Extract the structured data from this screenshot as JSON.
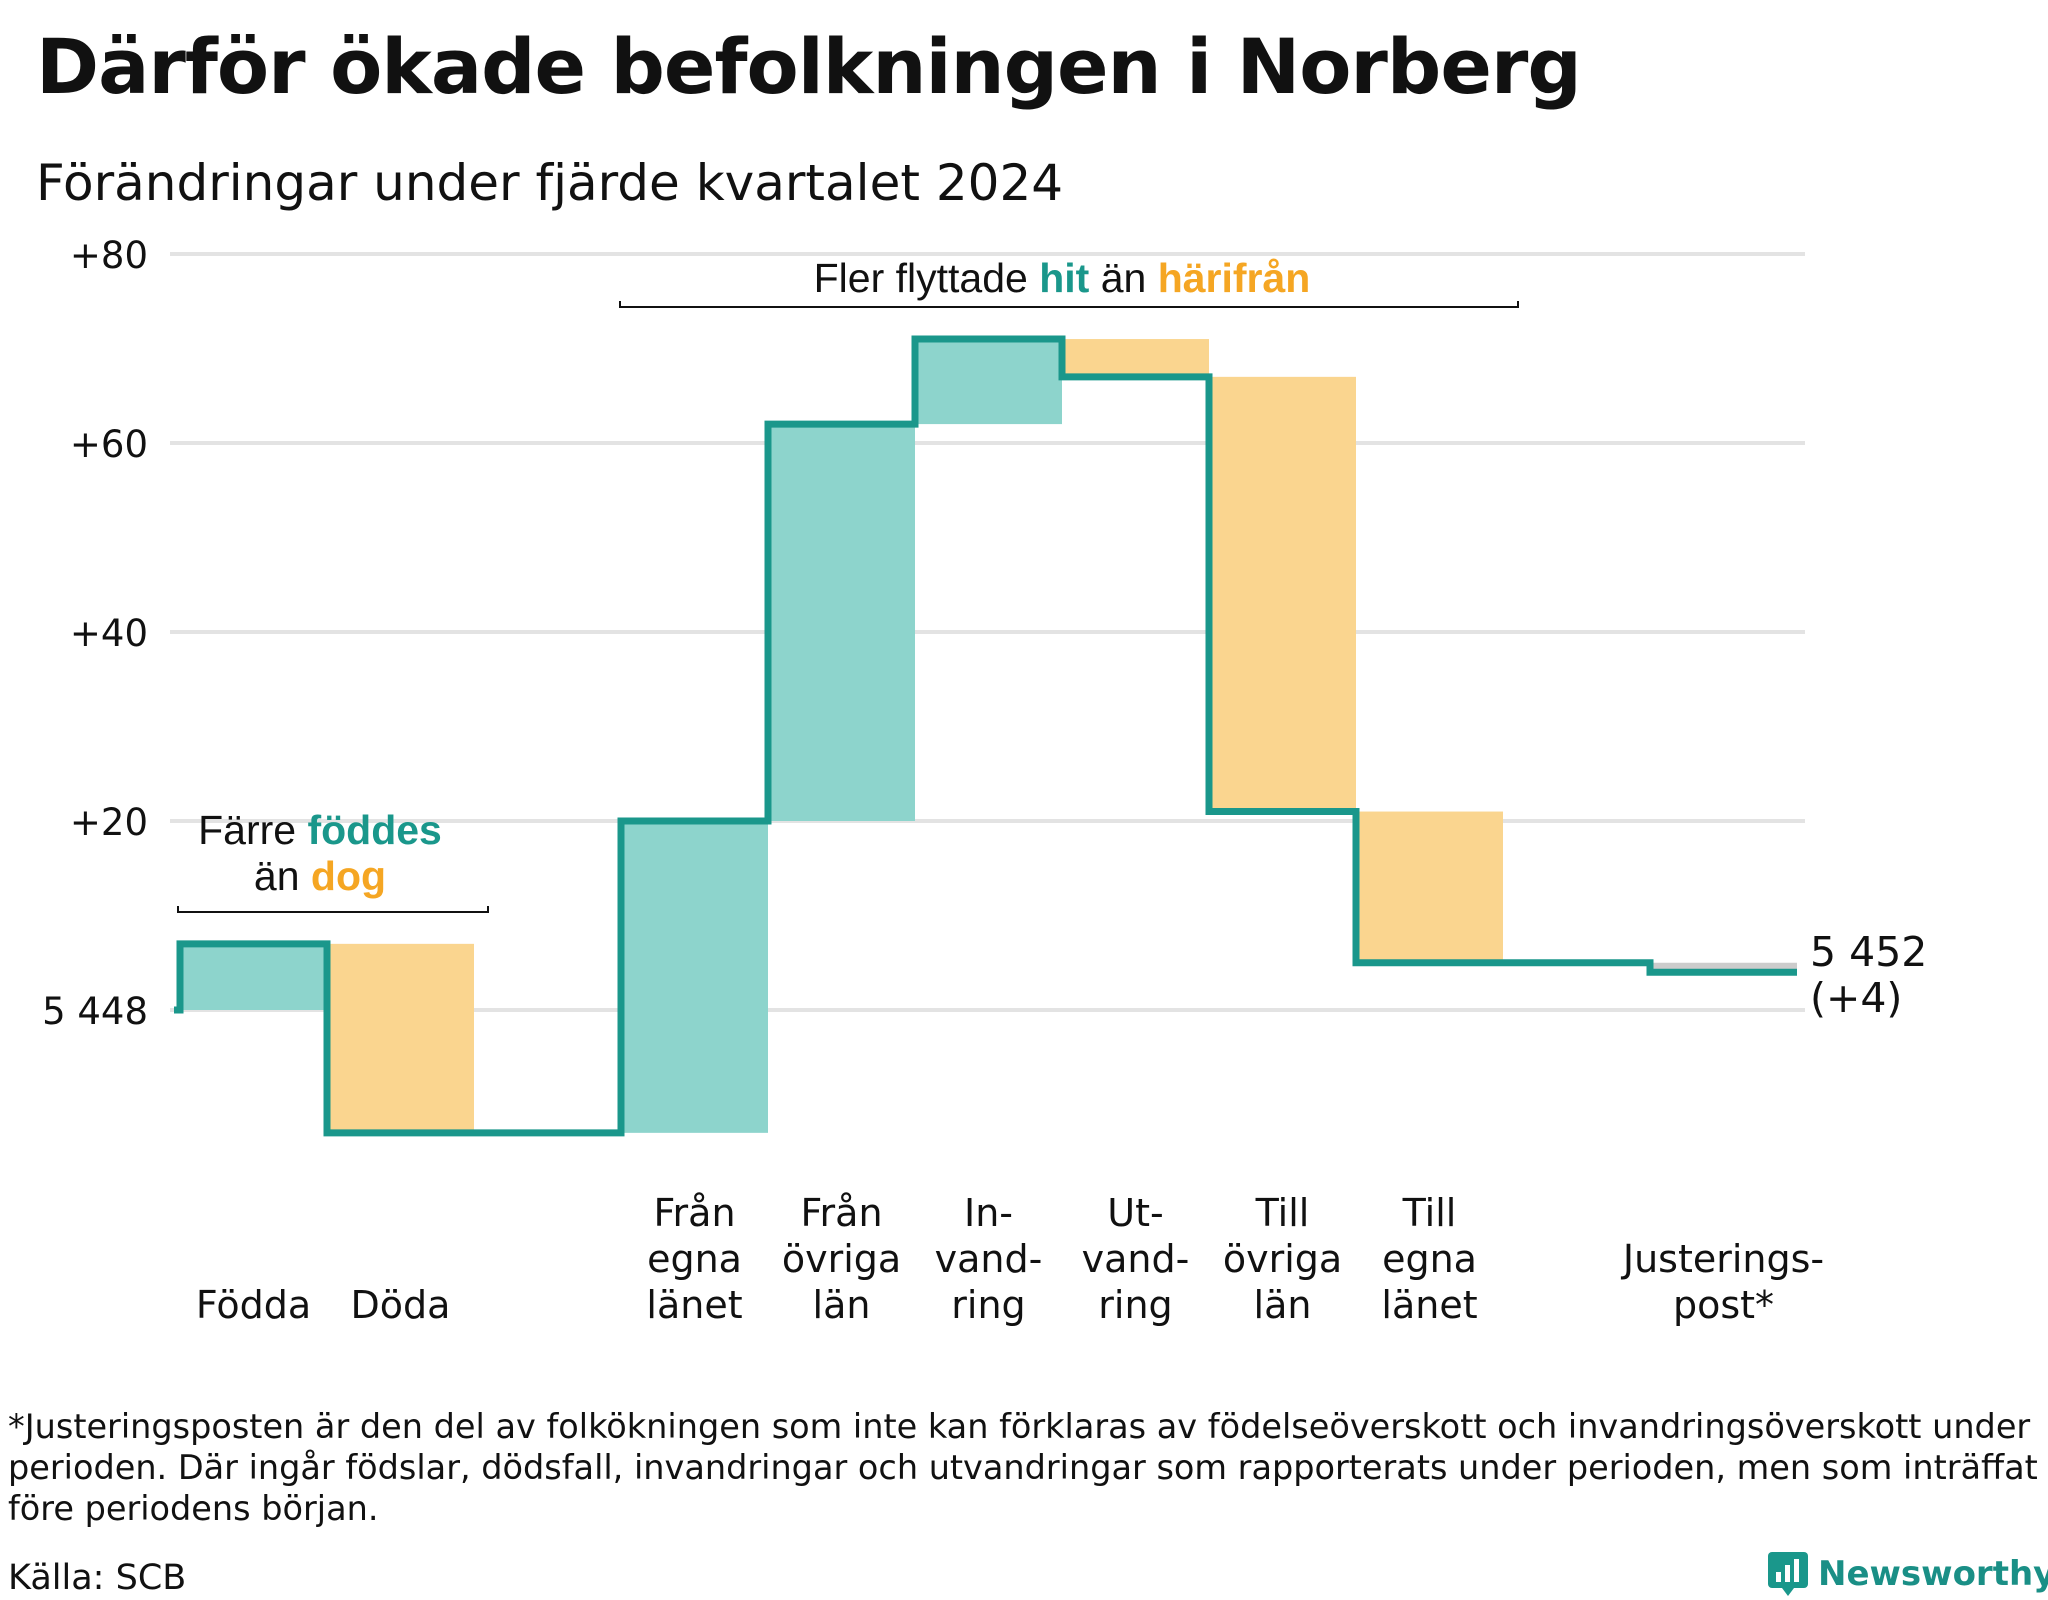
{
  "title": "Därför ökade befolkningen i Norberg",
  "subtitle": "Förändringar under fjärde kvartalet 2024",
  "chart_data": {
    "type": "waterfall",
    "start_value": 5448,
    "start_label": "5 448",
    "end_label": "5 452",
    "end_change_label": "(+4)",
    "y_axis": {
      "min": -13,
      "max": 80,
      "gridlines": [
        0,
        20,
        40,
        60,
        80
      ],
      "tick_labels": [
        {
          "value": 80,
          "label": "+80"
        },
        {
          "value": 60,
          "label": "+60"
        },
        {
          "value": 40,
          "label": "+40"
        },
        {
          "value": 20,
          "label": "+20"
        },
        {
          "value": 0,
          "label": "5 448"
        }
      ]
    },
    "steps": [
      {
        "key": "fodda",
        "label": [
          "Födda"
        ],
        "change": 7
      },
      {
        "key": "doda",
        "label": [
          "Döda"
        ],
        "change": -20
      },
      {
        "key": "gap",
        "label": [],
        "change": 0
      },
      {
        "key": "fran_egna",
        "label": [
          "Från",
          "egna",
          "länet"
        ],
        "change": 33
      },
      {
        "key": "fran_ovriga",
        "label": [
          "Från",
          "övriga",
          "län"
        ],
        "change": 42
      },
      {
        "key": "invandring",
        "label": [
          "In-",
          "vand-",
          "ring"
        ],
        "change": 9
      },
      {
        "key": "utvandring",
        "label": [
          "Ut-",
          "vand-",
          "ring"
        ],
        "change": -4
      },
      {
        "key": "till_ovriga",
        "label": [
          "Till",
          "övriga",
          "län"
        ],
        "change": -46
      },
      {
        "key": "till_egna",
        "label": [
          "Till",
          "egna",
          "länet"
        ],
        "change": -16
      },
      {
        "key": "gap2",
        "label": [],
        "change": 0
      },
      {
        "key": "justering",
        "label": [
          "Justerings-",
          "post*"
        ],
        "change": -1
      }
    ],
    "annotations": [
      {
        "key": "births",
        "parts": [
          {
            "text": "Färre ",
            "color": "#111111",
            "bold": false
          },
          {
            "text": "föddes",
            "color": "#1a978b",
            "bold": true
          },
          {
            "text": "än ",
            "color": "#111111",
            "bold": false
          },
          {
            "text": "dog",
            "color": "#f5a623",
            "bold": true
          }
        ]
      },
      {
        "key": "migration",
        "parts": [
          {
            "text": "Fler flyttade ",
            "color": "#111111",
            "bold": false
          },
          {
            "text": "hit",
            "color": "#1a978b",
            "bold": true
          },
          {
            "text": " än ",
            "color": "#111111",
            "bold": false
          },
          {
            "text": "härifrån",
            "color": "#f5a623",
            "bold": true
          }
        ]
      }
    ],
    "colors": {
      "increase": "#8dd4cc",
      "decrease": "#fad58f",
      "adjustment": "#cccccc",
      "line": "#1a978b",
      "grid": "#e3e3e3"
    },
    "grid": true,
    "legend": "none"
  },
  "footnote": "*Justeringsposten är den del av folkökningen som inte kan förklaras av födelseöverskott och invandringsöverskott under perioden. Där ingår födslar, dödsfall, invandringar och utvandringar som rapporterats under perioden, men som inträffat före periodens början.",
  "source": "Källa: SCB",
  "brand": "Newsworthy"
}
